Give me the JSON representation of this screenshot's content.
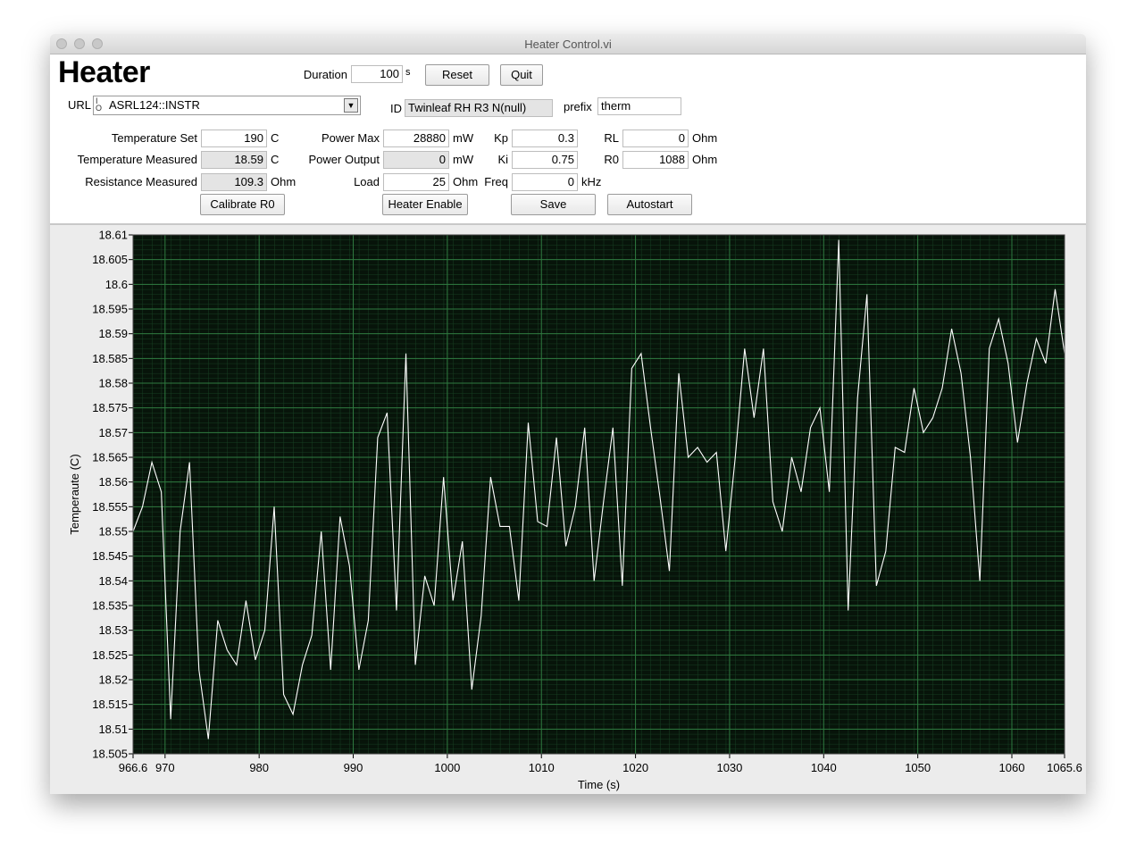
{
  "window_title": "Heater Control.vi",
  "heading": "Heater",
  "duration": {
    "label": "Duration",
    "value": "100",
    "unit": "s"
  },
  "url": {
    "label": "URL",
    "value": "ASRL124::INSTR"
  },
  "id": {
    "label": "ID",
    "value": "Twinleaf RH R3 N(null)"
  },
  "prefix": {
    "label": "prefix",
    "value": "therm"
  },
  "fields": [
    {
      "label": "Temperature Set",
      "value": "190",
      "unit": "C"
    },
    {
      "label": "Temperature Measured",
      "value": "18.59",
      "unit": "C"
    },
    {
      "label": "Resistance Measured",
      "value": "109.3",
      "unit": "Ohm"
    },
    {
      "label": "Power Max",
      "value": "28880",
      "unit": "mW"
    },
    {
      "label": "Power Output",
      "value": "0",
      "unit": "mW"
    },
    {
      "label": "Load",
      "value": "25",
      "unit": "Ohm"
    },
    {
      "label": "Kp",
      "value": "0.3"
    },
    {
      "label": "Ki",
      "value": "0.75"
    },
    {
      "label": "Freq",
      "value": "0",
      "unit": "kHz"
    },
    {
      "label": "RL",
      "value": "0",
      "unit": "Ohm"
    },
    {
      "label": "R0",
      "value": "1088",
      "unit": "Ohm"
    }
  ],
  "buttons": [
    "Reset",
    "Quit",
    "Calibrate R0",
    "Heater Enable",
    "Save",
    "Autostart"
  ],
  "chart_data": {
    "type": "line",
    "x_label": "Time (s)",
    "y_label": "Temperaute (C)",
    "color": "#ffffff",
    "grid": true,
    "xlim": [
      966.6,
      1065.6
    ],
    "xticks": [
      966.6,
      970,
      980,
      990,
      1000,
      1010,
      1020,
      1030,
      1040,
      1050,
      1060,
      1065.6
    ],
    "ylim": [
      18.505,
      18.61
    ],
    "yticks": [
      18.505,
      18.51,
      18.515,
      18.52,
      18.525,
      18.53,
      18.535,
      18.54,
      18.545,
      18.55,
      18.555,
      18.56,
      18.565,
      18.57,
      18.575,
      18.58,
      18.585,
      18.59,
      18.595,
      18.6,
      18.605,
      18.61
    ],
    "x": [
      966.6,
      967.6,
      968.6,
      969.6,
      970.6,
      971.6,
      972.6,
      973.6,
      974.6,
      975.6,
      976.6,
      977.6,
      978.6,
      979.6,
      980.6,
      981.6,
      982.6,
      983.6,
      984.6,
      985.6,
      986.6,
      987.6,
      988.6,
      989.6,
      990.6,
      991.6,
      992.6,
      993.6,
      994.6,
      995.6,
      996.6,
      997.6,
      998.6,
      999.6,
      1000.6,
      1001.6,
      1002.6,
      1003.6,
      1004.6,
      1005.6,
      1006.6,
      1007.6,
      1008.6,
      1009.6,
      1010.6,
      1011.6,
      1012.6,
      1013.6,
      1014.6,
      1015.6,
      1016.6,
      1017.6,
      1018.6,
      1019.6,
      1020.6,
      1021.6,
      1022.6,
      1023.6,
      1024.6,
      1025.6,
      1026.6,
      1027.6,
      1028.6,
      1029.6,
      1030.6,
      1031.6,
      1032.6,
      1033.6,
      1034.6,
      1035.6,
      1036.6,
      1037.6,
      1038.6,
      1039.6,
      1040.6,
      1041.6,
      1042.6,
      1043.6,
      1044.6,
      1045.6,
      1046.6,
      1047.6,
      1048.6,
      1049.6,
      1050.6,
      1051.6,
      1052.6,
      1053.6,
      1054.6,
      1055.6,
      1056.6,
      1057.6,
      1058.6,
      1059.6,
      1060.6,
      1061.6,
      1062.6,
      1063.6,
      1064.6,
      1065.6
    ],
    "values": [
      18.55,
      18.555,
      18.564,
      18.558,
      18.512,
      18.55,
      18.564,
      18.522,
      18.508,
      18.532,
      18.526,
      18.523,
      18.536,
      18.524,
      18.53,
      18.555,
      18.517,
      18.513,
      18.523,
      18.529,
      18.55,
      18.522,
      18.553,
      18.543,
      18.522,
      18.532,
      18.569,
      18.574,
      18.534,
      18.586,
      18.523,
      18.541,
      18.535,
      18.561,
      18.536,
      18.548,
      18.518,
      18.533,
      18.561,
      18.551,
      18.551,
      18.536,
      18.572,
      18.552,
      18.551,
      18.569,
      18.547,
      18.555,
      18.571,
      18.54,
      18.556,
      18.571,
      18.539,
      18.583,
      18.586,
      18.571,
      18.557,
      18.542,
      18.582,
      18.565,
      18.567,
      18.564,
      18.566,
      18.546,
      18.565,
      18.587,
      18.573,
      18.587,
      18.556,
      18.55,
      18.565,
      18.558,
      18.571,
      18.575,
      18.558,
      18.609,
      18.534,
      18.577,
      18.598,
      18.539,
      18.546,
      18.567,
      18.566,
      18.579,
      18.57,
      18.573,
      18.579,
      18.591,
      18.582,
      18.565,
      18.54,
      18.587,
      18.593,
      18.584,
      18.568,
      18.58,
      18.589,
      18.584,
      18.599,
      18.586
    ]
  }
}
